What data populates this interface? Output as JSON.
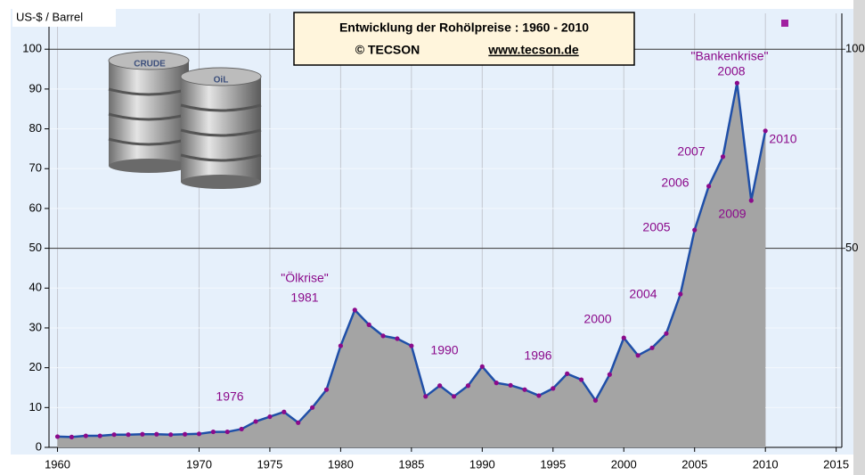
{
  "chart_data": {
    "type": "line",
    "title": "Entwicklung der Rohölpreise :  1960 - 2010",
    "subtitle_left": "© TECSON",
    "subtitle_right": "www.tecson.de",
    "y_label": "US-$ / Barrel",
    "barrel_labels": [
      "CRUDE",
      "OiL"
    ],
    "x": [
      1960,
      1961,
      1962,
      1963,
      1964,
      1965,
      1966,
      1967,
      1968,
      1969,
      1970,
      1971,
      1972,
      1973,
      1974,
      1975,
      1976,
      1977,
      1978,
      1979,
      1980,
      1981,
      1982,
      1983,
      1984,
      1985,
      1986,
      1987,
      1988,
      1989,
      1990,
      1991,
      1992,
      1993,
      1994,
      1995,
      1996,
      1997,
      1998,
      1999,
      2000,
      2001,
      2002,
      2003,
      2004,
      2005,
      2006,
      2007,
      2008,
      2009,
      2010
    ],
    "values": [
      2.7,
      2.6,
      2.9,
      2.9,
      3.2,
      3.2,
      3.3,
      3.3,
      3.2,
      3.3,
      3.4,
      3.9,
      3.9,
      4.6,
      6.5,
      7.7,
      8.9,
      6.2,
      10,
      14.5,
      25.5,
      34.5,
      30.8,
      28,
      27.3,
      25.5,
      12.8,
      15.5,
      12.8,
      15.5,
      20.3,
      16.2,
      15.6,
      14.5,
      13,
      14.8,
      18.5,
      17,
      11.8,
      18.3,
      27.5,
      23.1,
      25,
      28.6,
      38.5,
      54.6,
      65.6,
      73,
      91.5,
      62,
      79.5
    ],
    "line_color": "#1f4fa8",
    "fill_color": "#a4a4a4",
    "marker_color": "#8b0a8b",
    "xlim": [
      1959.4,
      2015.4
    ],
    "xticks": [
      1960,
      1970,
      1975,
      1980,
      1985,
      1990,
      1995,
      2000,
      2005,
      2010,
      2015
    ],
    "ylim": [
      0,
      109
    ],
    "yticks": [
      0,
      10,
      20,
      30,
      40,
      50,
      60,
      70,
      80,
      90,
      100
    ],
    "y2lim": [
      0,
      109
    ],
    "y2ticks": [
      50,
      100
    ],
    "grid": true,
    "annotations": [
      "\"Ölkrise\"",
      "1981",
      "1976",
      "1990",
      "1996",
      "2000",
      "2004",
      "2005",
      "2006",
      "2007",
      "\"Bankenkrise\"",
      "2008",
      "2009",
      "2010"
    ]
  }
}
